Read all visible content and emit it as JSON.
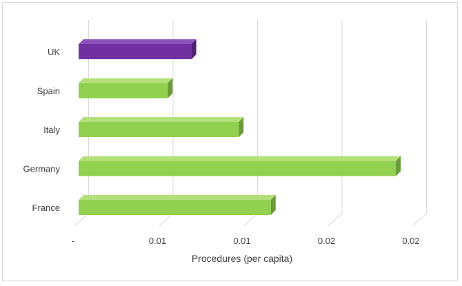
{
  "chart_data": {
    "type": "bar",
    "orientation": "horizontal",
    "style": "3d",
    "categories": [
      "UK",
      "Spain",
      "Italy",
      "Germany",
      "France"
    ],
    "values": [
      0.0068,
      0.0054,
      0.0096,
      0.0189,
      0.0115
    ],
    "highlight_category": "UK",
    "xlabel": "Procedures (per capita)",
    "ylabel": "",
    "xlim": [
      0,
      0.02
    ],
    "x_tick_labels": [
      "-",
      "0.01",
      "0.01",
      "0.02",
      "0.02"
    ],
    "grid": true,
    "legend": "none",
    "colors": {
      "bar_front": "#92d050",
      "bar_top": "#b4e07c",
      "bar_side": "#6b9a38",
      "highlight_front": "#7030a0",
      "highlight_top": "#8e52bd",
      "highlight_side": "#4f1f73",
      "gridline": "#d9d9d9",
      "text": "#404040"
    }
  }
}
